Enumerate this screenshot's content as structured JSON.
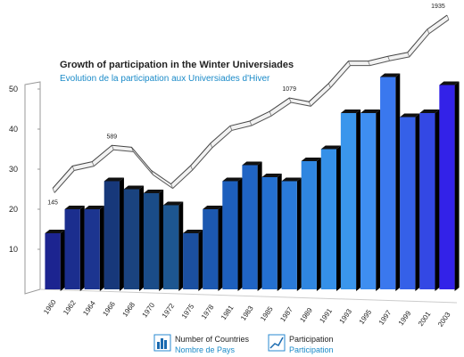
{
  "chart_data": {
    "type": "bar",
    "title": "Growth of participation in the Winter Universiades",
    "subtitle": "Evolution de la participation aux Universiades d'Hiver",
    "categories": [
      "1960",
      "1962",
      "1964",
      "1966",
      "1968",
      "1970",
      "1972",
      "1975",
      "1978",
      "1981",
      "1983",
      "1985",
      "1987",
      "1989",
      "1991",
      "1993",
      "1995",
      "1997",
      "1999",
      "2001",
      "2003"
    ],
    "series": [
      {
        "name": "Number of Countries",
        "name_fr": "Nombre de Pays",
        "colors": [
          "#1c2490",
          "#1b2e8e",
          "#1c3590",
          "#17387a",
          "#1a437f",
          "#1a4c88",
          "#1d5690",
          "#1b4fa0",
          "#1c58b0",
          "#1d5fbd",
          "#2064c4",
          "#2470d0",
          "#2a7ad8",
          "#2f86e0",
          "#3590e8",
          "#3a96ec",
          "#3e8ef0",
          "#3a78ee",
          "#3560e8",
          "#3348e4",
          "#3322e8"
        ],
        "values": [
          14,
          20,
          20,
          27,
          25,
          24,
          21,
          14,
          20,
          27,
          31,
          28,
          27,
          32,
          35,
          44,
          44,
          53,
          43,
          44,
          51
        ]
      },
      {
        "name": "Participation",
        "name_fr": "Participation",
        "type": "line",
        "axis": "y2",
        "values": [
          145,
          375,
          420,
          589,
          570,
          330,
          190,
          380,
          610,
          790,
          840,
          940,
          1079,
          1040,
          1230,
          1460,
          1460,
          1510,
          1550,
          1790,
          1935
        ],
        "value_labels": [
          "145",
          null,
          null,
          "589",
          null,
          null,
          null,
          null,
          null,
          null,
          null,
          null,
          "1079",
          null,
          null,
          null,
          null,
          null,
          null,
          null,
          "1935"
        ]
      }
    ],
    "ylim": [
      0,
      55
    ],
    "yticks": [
      10,
      20,
      30,
      40,
      50
    ],
    "y2lim": [
      -900,
      2000
    ]
  }
}
